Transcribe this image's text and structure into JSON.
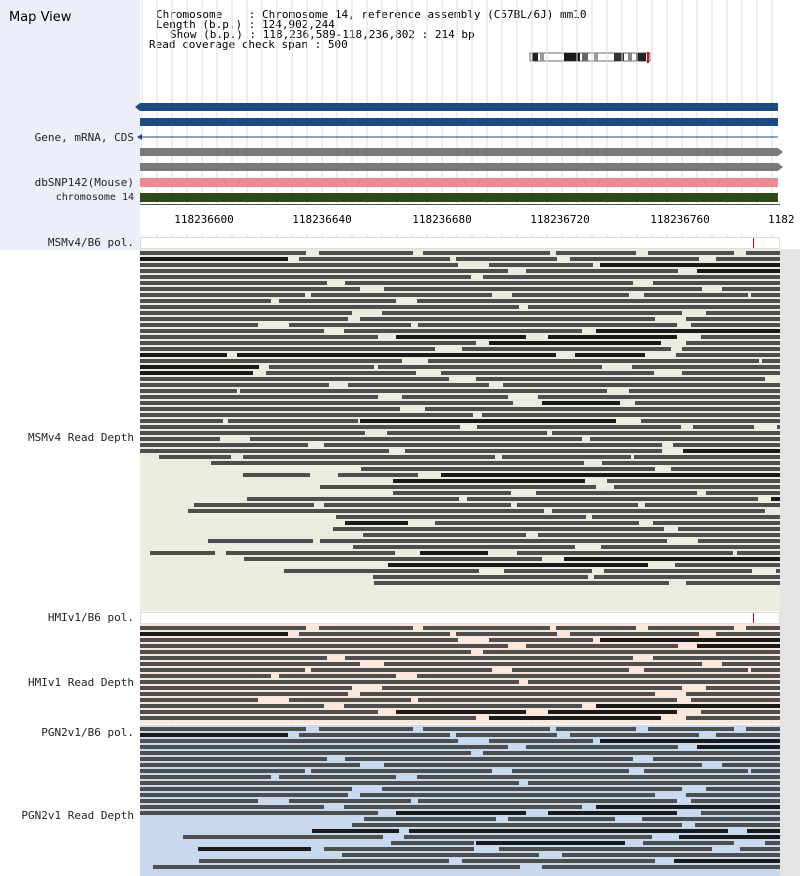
{
  "app": {
    "title": "Map View"
  },
  "info": {
    "chromosome_label": "Chromosome",
    "chromosome_value": "Chromosome 14, reference assembly (C57BL/6J) mm10",
    "length_label": "Length (b.p.)",
    "length_value": "124,902,244",
    "show_label": "Show (b.p.)",
    "show_value": "118,236,589-118,236,802 : 214 bp",
    "span_label": "Read coverage check span",
    "span_value": "500"
  },
  "tracks": {
    "gene": "Gene, mRNA, CDS",
    "dbsnp": "dbSNP142(Mouse)",
    "chrom": "chromosome 14",
    "msm_pol": "MSMv4/B6 pol.",
    "msm_depth": "MSMv4 Read Depth",
    "hmi_pol": "HMIv1/B6 pol.",
    "hmi_depth": "HMIv1 Read Depth",
    "pgn_pol": "PGN2v1/B6 pol.",
    "pgn_depth": "PGN2v1 Read Depth"
  },
  "ruler": [
    "118236600",
    "118236640",
    "118236680",
    "118236720",
    "118236760",
    "1182"
  ],
  "colors": {
    "gene_blue": "#1c4a82",
    "transcript_gray": "#7a7a7a",
    "snp_pink": "#ec8a92",
    "chrom_green": "#2d4a1a",
    "msm_bg": "#e8eddf",
    "hmi_bg": "#fbe7dc",
    "pgn_bg": "#c8d8ee"
  }
}
